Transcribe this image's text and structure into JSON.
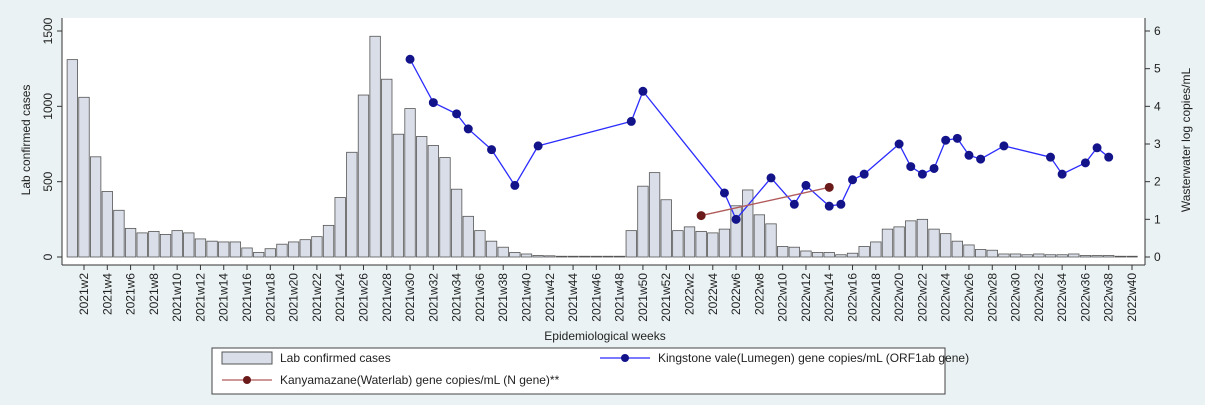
{
  "chart_data": {
    "type": "bar",
    "x_label": "Epidemiological weeks",
    "y_label": "Lab confirmed cases",
    "y2_label": "Wasterwater log copies/mL",
    "categories": [
      null,
      "2021w2",
      null,
      "2021w4",
      null,
      "2021w6",
      null,
      "2021w8",
      null,
      "2021w10",
      null,
      "2021w12",
      null,
      "2021w14",
      null,
      "2021w16",
      null,
      "2021w18",
      null,
      "2021w20",
      null,
      "2021w22",
      null,
      "2021w24",
      null,
      "2021w26",
      null,
      "2021w28",
      null,
      "2021w30",
      null,
      "2021w32",
      null,
      "2021w34",
      null,
      "2021w36",
      null,
      "2021w38",
      null,
      "2021w40",
      null,
      "2021w42",
      null,
      "2021w44",
      null,
      "2021w46",
      null,
      "2021w48",
      null,
      "2021w50",
      null,
      "2021w52",
      null,
      "2022w2",
      null,
      "2022w4",
      null,
      "2022w6",
      null,
      "2022w8",
      null,
      "2022w10",
      null,
      "2022w12",
      null,
      "2022w14",
      null,
      "2022w16",
      null,
      "2022w18",
      null,
      "2022w20",
      null,
      "2022w22",
      null,
      "2022w24",
      null,
      "2022w26",
      null,
      "2022w28",
      null,
      "2022w30",
      null,
      "2022w32",
      null,
      "2022w34",
      null,
      "2022w36",
      null,
      "2022w38",
      null,
      "2022w40"
    ],
    "ylim": [
      0,
      1500
    ],
    "yticks": [
      0,
      500,
      1000,
      1500
    ],
    "y2lim": [
      0,
      6
    ],
    "y2ticks": [
      0,
      1,
      2,
      3,
      4,
      5,
      6
    ],
    "series": [
      {
        "name": "Lab confirmed cases",
        "type": "bar",
        "color": "#d9dee8",
        "values": [
          1310,
          1060,
          665,
          435,
          310,
          190,
          160,
          170,
          150,
          175,
          160,
          120,
          105,
          100,
          100,
          60,
          30,
          55,
          85,
          100,
          115,
          135,
          210,
          395,
          695,
          1075,
          1465,
          1180,
          815,
          985,
          800,
          740,
          660,
          450,
          270,
          175,
          105,
          65,
          30,
          20,
          10,
          8,
          5,
          5,
          5,
          5,
          5,
          5,
          175,
          470,
          560,
          380,
          175,
          200,
          170,
          160,
          185,
          340,
          445,
          280,
          220,
          70,
          65,
          40,
          30,
          30,
          15,
          25,
          70,
          100,
          185,
          200,
          240,
          250,
          185,
          155,
          105,
          80,
          50,
          45,
          20,
          20,
          15,
          20,
          15,
          15,
          20,
          10,
          10,
          10,
          5,
          5
        ]
      },
      {
        "name": "Kingstone vale(Lumegen) gene copies/mL (ORF1ab gene)",
        "type": "line",
        "axis": "y2",
        "color": "#2b2bff",
        "marker_color": "#13138a",
        "values": [
          null,
          null,
          null,
          null,
          null,
          null,
          null,
          null,
          null,
          null,
          null,
          null,
          null,
          null,
          null,
          null,
          null,
          null,
          null,
          null,
          null,
          null,
          null,
          null,
          null,
          null,
          null,
          null,
          null,
          5.25,
          null,
          4.1,
          null,
          3.8,
          3.4,
          null,
          2.85,
          null,
          1.9,
          null,
          2.95,
          null,
          null,
          null,
          null,
          null,
          null,
          null,
          3.6,
          4.4,
          null,
          null,
          null,
          null,
          null,
          null,
          1.7,
          1.0,
          null,
          null,
          2.1,
          null,
          1.4,
          1.9,
          null,
          1.35,
          1.4,
          2.05,
          2.2,
          null,
          null,
          3.0,
          2.4,
          2.2,
          2.35,
          3.1,
          3.15,
          2.7,
          2.6,
          null,
          2.95,
          null,
          null,
          null,
          2.65,
          2.2,
          null,
          2.5,
          2.9,
          2.65,
          null,
          null
        ]
      },
      {
        "name": "Kanyamazane(Waterlab) gene copies/mL (N gene)**",
        "type": "line",
        "axis": "y2",
        "color": "#b05a5a",
        "marker_color": "#6b1a1a",
        "values": [
          null,
          null,
          null,
          null,
          null,
          null,
          null,
          null,
          null,
          null,
          null,
          null,
          null,
          null,
          null,
          null,
          null,
          null,
          null,
          null,
          null,
          null,
          null,
          null,
          null,
          null,
          null,
          null,
          null,
          null,
          null,
          null,
          null,
          null,
          null,
          null,
          null,
          null,
          null,
          null,
          null,
          null,
          null,
          null,
          null,
          null,
          null,
          null,
          null,
          null,
          null,
          null,
          null,
          null,
          1.1,
          null,
          null,
          null,
          null,
          null,
          null,
          null,
          null,
          null,
          null,
          1.85,
          null,
          null,
          null,
          null,
          null,
          null,
          null,
          null,
          null,
          null,
          null,
          null,
          null,
          null,
          null,
          null,
          null,
          null,
          null,
          null,
          null,
          null,
          null,
          null,
          null,
          null
        ]
      }
    ]
  }
}
